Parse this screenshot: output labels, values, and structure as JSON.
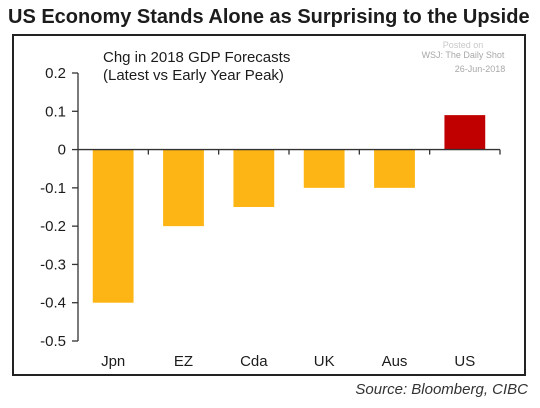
{
  "page_title": "US Economy Stands Alone as Surprising to the Upside",
  "watermark": {
    "posted": "Posted on",
    "publisher": "WSJ: The Daily Shot",
    "date": "26-Jun-2018"
  },
  "source": "Source: Bloomberg, CIBC",
  "colors": {
    "default_bar": "#FDB515",
    "highlight_bar": "#C00000",
    "axis": "#333333"
  },
  "chart_data": {
    "type": "bar",
    "title": "Chg in 2018 GDP Forecasts",
    "subtitle": "(Latest vs Early Year Peak)",
    "xlabel": "",
    "ylabel": "",
    "categories": [
      "Jpn",
      "EZ",
      "Cda",
      "UK",
      "Aus",
      "US"
    ],
    "values": [
      -0.4,
      -0.2,
      -0.15,
      -0.1,
      -0.1,
      0.09
    ],
    "highlight": [
      "US"
    ],
    "ylim": [
      -0.5,
      0.2
    ],
    "yticks": [
      0.2,
      0.1,
      0,
      -0.1,
      -0.2,
      -0.3,
      -0.4,
      -0.5
    ],
    "ytick_labels": [
      "0.2",
      "0.1",
      "0",
      "-0.1",
      "-0.2",
      "-0.3",
      "-0.4",
      "-0.5"
    ],
    "grid": false,
    "legend": "none"
  }
}
